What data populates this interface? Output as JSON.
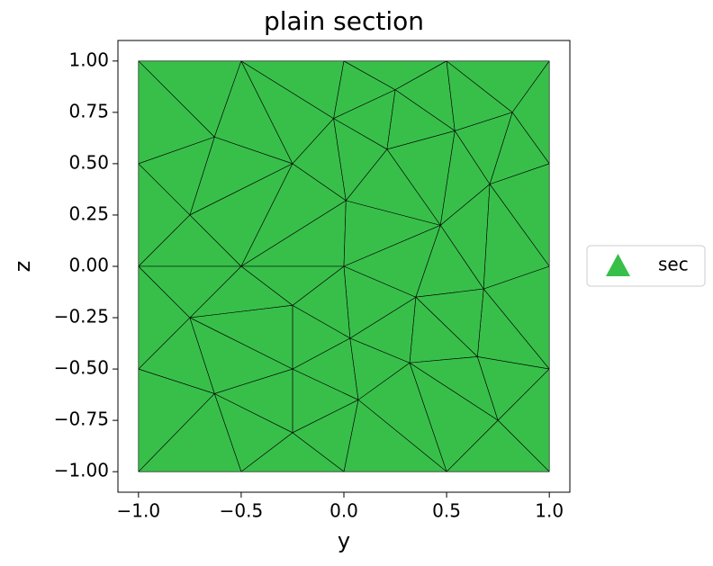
{
  "chart_data": {
    "type": "mesh",
    "title": "plain section",
    "x_label": "y",
    "y_label": "z",
    "xlim": [
      -1.1,
      1.1
    ],
    "ylim": [
      -1.1,
      1.1
    ],
    "xticks": [
      {
        "value": -1,
        "label": "−1.0"
      },
      {
        "value": -0.5,
        "label": "−0.5"
      },
      {
        "value": 0,
        "label": "0.0"
      },
      {
        "value": 0.5,
        "label": "0.5"
      },
      {
        "value": 1,
        "label": "1.0"
      }
    ],
    "yticks": [
      {
        "value": -1,
        "label": "−1.00"
      },
      {
        "value": -0.75,
        "label": "−0.75"
      },
      {
        "value": -0.5,
        "label": "−0.50"
      },
      {
        "value": -0.25,
        "label": "−0.25"
      },
      {
        "value": 0,
        "label": "0.00"
      },
      {
        "value": 0.25,
        "label": "0.25"
      },
      {
        "value": 0.5,
        "label": "0.50"
      },
      {
        "value": 0.75,
        "label": "0.75"
      },
      {
        "value": 1,
        "label": "1.00"
      }
    ],
    "legend_position": "right",
    "series": [
      {
        "name": "sec",
        "color": "#38bf4a",
        "edge_color": "#000000",
        "nodes": [
          [
            -1,
            1
          ],
          [
            -0.5,
            1
          ],
          [
            0,
            1
          ],
          [
            0.5,
            1
          ],
          [
            1,
            1
          ],
          [
            1,
            0.5
          ],
          [
            1,
            0
          ],
          [
            1,
            -0.5
          ],
          [
            1,
            -1
          ],
          [
            0.5,
            -1
          ],
          [
            0,
            -1
          ],
          [
            -0.5,
            -1
          ],
          [
            -1,
            -1
          ],
          [
            -1,
            -0.5
          ],
          [
            -1,
            0
          ],
          [
            -1,
            0.5
          ],
          [
            -0.63,
            0.63
          ],
          [
            -0.25,
            0.5
          ],
          [
            -0.75,
            0.25
          ],
          [
            -0.5,
            0
          ],
          [
            -0.05,
            0.72
          ],
          [
            0.25,
            0.86
          ],
          [
            0.21,
            0.57
          ],
          [
            0.01,
            0.32
          ],
          [
            0,
            0
          ],
          [
            0.54,
            0.66
          ],
          [
            0.82,
            0.75
          ],
          [
            0.71,
            0.4
          ],
          [
            0.47,
            0.2
          ],
          [
            0.35,
            -0.15
          ],
          [
            0.68,
            -0.11
          ],
          [
            -0.25,
            -0.19
          ],
          [
            -0.75,
            -0.25
          ],
          [
            0.03,
            -0.35
          ],
          [
            -0.25,
            -0.5
          ],
          [
            0.32,
            -0.47
          ],
          [
            0.65,
            -0.44
          ],
          [
            -0.63,
            -0.62
          ],
          [
            0.07,
            -0.65
          ],
          [
            -0.25,
            -0.81
          ],
          [
            0.75,
            -0.75
          ]
        ],
        "triangles": [
          [
            0,
            1,
            16
          ],
          [
            0,
            16,
            15
          ],
          [
            1,
            16,
            17
          ],
          [
            1,
            17,
            20
          ],
          [
            1,
            20,
            2
          ],
          [
            2,
            20,
            21
          ],
          [
            2,
            21,
            3
          ],
          [
            20,
            21,
            22
          ],
          [
            21,
            3,
            25
          ],
          [
            21,
            25,
            22
          ],
          [
            3,
            26,
            25
          ],
          [
            3,
            4,
            26
          ],
          [
            4,
            5,
            26
          ],
          [
            26,
            27,
            5
          ],
          [
            25,
            26,
            27
          ],
          [
            22,
            25,
            28
          ],
          [
            25,
            27,
            28
          ],
          [
            20,
            17,
            23
          ],
          [
            20,
            23,
            22
          ],
          [
            22,
            23,
            28
          ],
          [
            16,
            17,
            18
          ],
          [
            15,
            16,
            18
          ],
          [
            15,
            18,
            14
          ],
          [
            18,
            19,
            14
          ],
          [
            18,
            17,
            19
          ],
          [
            17,
            23,
            19
          ],
          [
            19,
            23,
            24
          ],
          [
            23,
            28,
            24
          ],
          [
            24,
            28,
            29
          ],
          [
            28,
            27,
            30
          ],
          [
            28,
            30,
            29
          ],
          [
            27,
            5,
            6
          ],
          [
            27,
            6,
            30
          ],
          [
            6,
            30,
            7
          ],
          [
            30,
            36,
            7
          ],
          [
            29,
            30,
            36
          ],
          [
            29,
            36,
            35
          ],
          [
            35,
            36,
            40
          ],
          [
            36,
            40,
            7
          ],
          [
            40,
            7,
            8
          ],
          [
            35,
            40,
            9
          ],
          [
            40,
            9,
            8
          ],
          [
            38,
            35,
            9
          ],
          [
            38,
            9,
            10
          ],
          [
            39,
            38,
            10
          ],
          [
            39,
            10,
            11
          ],
          [
            37,
            39,
            11
          ],
          [
            37,
            11,
            12
          ],
          [
            13,
            37,
            12
          ],
          [
            34,
            38,
            39
          ],
          [
            34,
            39,
            37
          ],
          [
            34,
            33,
            38
          ],
          [
            33,
            35,
            38
          ],
          [
            33,
            29,
            35
          ],
          [
            24,
            29,
            33
          ],
          [
            24,
            33,
            31
          ],
          [
            31,
            33,
            34
          ],
          [
            19,
            24,
            31
          ],
          [
            19,
            31,
            32
          ],
          [
            32,
            31,
            34
          ],
          [
            32,
            34,
            37
          ],
          [
            13,
            32,
            37
          ],
          [
            14,
            32,
            13
          ],
          [
            14,
            19,
            32
          ]
        ]
      }
    ]
  }
}
